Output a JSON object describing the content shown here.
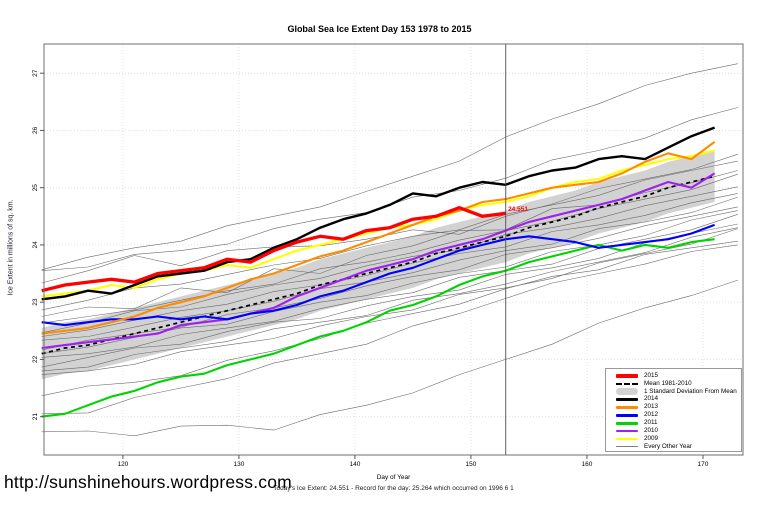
{
  "header": {
    "title": "Global Sea Ice Extent Day 153 1978 to 2015"
  },
  "footer": {
    "url": "http://sunshinehours.wordpress.com",
    "caption": "Today's Ice Extent: 24.551  - Record for the day: 25.264 which occurred on 1996 6 1"
  },
  "annotation": {
    "label": "24.551",
    "day": 153.2,
    "value": 24.62,
    "color": "#ff0000"
  },
  "chart_data": {
    "type": "line",
    "title": "Global Sea Ice Extent Day 153 1978 to 2015",
    "xlabel": "Day of Year",
    "ylabel": "Ice Extent in millions of sq. km.",
    "xlim": [
      113.2,
      173.45
    ],
    "ylim": [
      20.33,
      27.51
    ],
    "x_ticks": [
      120,
      130,
      140,
      150,
      160,
      170
    ],
    "y_ticks": [
      21,
      22,
      23,
      24,
      25,
      26,
      27
    ],
    "grid": true,
    "grid_color": "#dcdcdc",
    "vline_day": 153,
    "vline_color": "#4d4d4d",
    "legend_position": "bottom-right",
    "band": {
      "name": "1 Standard Deviation From Mean",
      "color": "#d2d2d2",
      "halfwidth": 0.45
    },
    "mean": {
      "name": "Mean 1981-2010",
      "color": "#000000",
      "dashed": true,
      "width": 1.7,
      "x_start": 113,
      "x_step": 2,
      "values": [
        22.1,
        22.2,
        22.25,
        22.35,
        22.45,
        22.55,
        22.65,
        22.75,
        22.85,
        22.95,
        23.05,
        23.15,
        23.3,
        23.4,
        23.5,
        23.6,
        23.7,
        23.85,
        23.95,
        24.05,
        24.15,
        24.3,
        24.4,
        24.5,
        24.65,
        24.75,
        24.85,
        25.0,
        25.1,
        25.2
      ]
    },
    "series": [
      {
        "name": "2011",
        "color": "#00d400",
        "width": 2.1,
        "x_start": 113,
        "x_step": 2,
        "values": [
          21.0,
          21.05,
          21.2,
          21.35,
          21.45,
          21.6,
          21.7,
          21.75,
          21.9,
          22.0,
          22.1,
          22.25,
          22.4,
          22.5,
          22.65,
          22.85,
          22.95,
          23.1,
          23.3,
          23.45,
          23.55,
          23.7,
          23.8,
          23.9,
          24.0,
          23.9,
          24.0,
          23.95,
          24.05,
          24.1
        ]
      },
      {
        "name": "2010",
        "color": "#a020f0",
        "width": 2.1,
        "x_start": 113,
        "x_step": 2,
        "values": [
          22.2,
          22.25,
          22.3,
          22.35,
          22.4,
          22.45,
          22.6,
          22.65,
          22.7,
          22.8,
          22.9,
          23.1,
          23.25,
          23.4,
          23.55,
          23.65,
          23.75,
          23.9,
          24.0,
          24.1,
          24.25,
          24.4,
          24.5,
          24.6,
          24.7,
          24.8,
          24.95,
          25.1,
          25.0,
          25.25
        ]
      },
      {
        "name": "2012",
        "color": "#0000ff",
        "width": 2.1,
        "x_start": 113,
        "x_step": 2,
        "values": [
          22.65,
          22.6,
          22.65,
          22.7,
          22.7,
          22.75,
          22.7,
          22.75,
          22.7,
          22.8,
          22.85,
          22.95,
          23.1,
          23.2,
          23.35,
          23.5,
          23.6,
          23.75,
          23.9,
          24.0,
          24.1,
          24.15,
          24.1,
          24.05,
          23.95,
          24.0,
          24.05,
          24.1,
          24.2,
          24.35
        ]
      },
      {
        "name": "2009",
        "color": "#ffff00",
        "width": 2.1,
        "x_start": 113,
        "x_step": 2,
        "values": [
          23.1,
          23.15,
          23.2,
          23.3,
          23.25,
          23.4,
          23.5,
          23.55,
          23.65,
          23.6,
          23.75,
          23.9,
          24.0,
          24.1,
          24.2,
          24.3,
          24.35,
          24.45,
          24.6,
          24.7,
          24.75,
          24.85,
          25.0,
          25.1,
          25.15,
          25.3,
          25.4,
          25.5,
          25.55,
          25.65
        ]
      },
      {
        "name": "2013",
        "color": "#ff8c00",
        "width": 2.1,
        "x_start": 113,
        "x_step": 2,
        "values": [
          22.45,
          22.5,
          22.55,
          22.65,
          22.75,
          22.9,
          23.0,
          23.1,
          23.25,
          23.4,
          23.5,
          23.65,
          23.8,
          23.9,
          24.05,
          24.2,
          24.35,
          24.5,
          24.6,
          24.75,
          24.8,
          24.9,
          25.0,
          25.05,
          25.1,
          25.25,
          25.45,
          25.6,
          25.5,
          25.8
        ]
      },
      {
        "name": "2014",
        "color": "#000000",
        "width": 2.4,
        "x_start": 113,
        "x_step": 2,
        "values": [
          23.05,
          23.1,
          23.2,
          23.15,
          23.3,
          23.45,
          23.5,
          23.55,
          23.7,
          23.75,
          23.95,
          24.1,
          24.3,
          24.45,
          24.55,
          24.7,
          24.9,
          24.85,
          25.0,
          25.1,
          25.05,
          25.2,
          25.3,
          25.35,
          25.5,
          25.55,
          25.5,
          25.7,
          25.9,
          26.05
        ]
      },
      {
        "name": "2015",
        "color": "#ff0000",
        "width": 3.3,
        "x_start": 113,
        "x_step": 2,
        "values": [
          23.2,
          23.3,
          23.35,
          23.4,
          23.35,
          23.5,
          23.55,
          23.6,
          23.75,
          23.7,
          23.9,
          24.05,
          24.15,
          24.1,
          24.25,
          24.3,
          24.45,
          24.5,
          24.65,
          24.5,
          24.55
        ]
      }
    ],
    "background_series": {
      "name": "Every Other Year",
      "color": "#6b6b6b",
      "width": 0.6,
      "x_start": 113,
      "x_step": 4,
      "lines": [
        [
          23.6,
          23.75,
          23.95,
          24.1,
          24.3,
          24.5,
          24.7,
          24.9,
          25.2,
          25.5,
          25.85,
          26.2,
          26.5,
          26.75,
          27.0,
          27.2
        ],
        [
          23.55,
          23.65,
          23.8,
          23.9,
          24.05,
          24.25,
          24.45,
          24.6,
          24.8,
          24.95,
          25.2,
          25.45,
          25.65,
          25.9,
          26.15,
          26.4
        ],
        [
          23.3,
          23.55,
          23.85,
          23.6,
          23.9,
          24.0,
          23.95,
          24.1,
          24.3,
          24.15,
          24.5,
          24.75,
          24.95,
          25.15,
          25.35,
          25.55
        ],
        [
          22.9,
          23.0,
          23.25,
          23.35,
          23.45,
          23.65,
          23.8,
          23.95,
          24.15,
          24.3,
          24.5,
          24.7,
          24.9,
          25.1,
          25.3,
          25.5
        ],
        [
          22.75,
          22.95,
          22.85,
          23.25,
          23.2,
          23.55,
          23.5,
          23.85,
          23.95,
          24.25,
          24.3,
          24.6,
          24.7,
          24.95,
          25.05,
          25.3
        ],
        [
          22.6,
          22.75,
          22.9,
          23.0,
          23.2,
          23.35,
          23.55,
          23.7,
          23.9,
          24.05,
          24.25,
          24.45,
          24.6,
          24.8,
          25.0,
          25.2
        ],
        [
          22.5,
          22.6,
          22.85,
          22.95,
          23.1,
          23.3,
          23.45,
          23.6,
          23.8,
          23.95,
          24.15,
          24.3,
          24.5,
          24.65,
          24.85,
          25.05
        ],
        [
          22.4,
          22.55,
          22.65,
          22.85,
          23.0,
          23.15,
          23.3,
          23.5,
          23.65,
          23.85,
          24.0,
          24.2,
          24.35,
          24.55,
          24.7,
          24.9
        ],
        [
          22.3,
          22.4,
          22.6,
          22.7,
          22.85,
          23.05,
          23.2,
          23.35,
          23.55,
          23.7,
          23.9,
          24.05,
          24.25,
          24.4,
          24.6,
          24.8
        ],
        [
          22.2,
          22.3,
          22.45,
          22.6,
          22.75,
          22.9,
          23.1,
          23.25,
          23.45,
          23.6,
          23.8,
          23.95,
          24.15,
          24.3,
          24.5,
          24.7
        ],
        [
          22.1,
          22.25,
          22.35,
          22.55,
          22.65,
          22.8,
          23.0,
          23.15,
          23.3,
          23.5,
          23.65,
          23.85,
          24.0,
          24.2,
          24.4,
          24.6
        ],
        [
          22.0,
          22.1,
          22.25,
          22.4,
          22.55,
          22.7,
          22.85,
          23.05,
          23.2,
          23.4,
          23.55,
          23.7,
          23.9,
          24.1,
          24.3,
          24.5
        ],
        [
          21.9,
          22.0,
          22.2,
          22.3,
          22.45,
          22.65,
          22.75,
          22.9,
          23.1,
          23.25,
          23.45,
          23.6,
          23.8,
          24.0,
          24.2,
          24.4
        ],
        [
          21.8,
          21.9,
          22.05,
          22.2,
          22.35,
          22.5,
          22.65,
          22.8,
          23.0,
          23.15,
          23.35,
          23.5,
          23.7,
          23.9,
          24.1,
          24.3
        ],
        [
          21.7,
          21.8,
          21.95,
          22.1,
          22.25,
          22.4,
          22.55,
          22.75,
          22.9,
          23.1,
          23.25,
          23.45,
          23.65,
          23.85,
          24.05,
          24.25
        ],
        [
          21.4,
          21.5,
          21.6,
          21.75,
          21.95,
          22.15,
          22.4,
          22.6,
          22.8,
          23.0,
          23.2,
          23.45,
          23.6,
          23.8,
          23.95,
          24.1
        ],
        [
          21.05,
          21.1,
          21.3,
          21.5,
          21.7,
          21.9,
          22.1,
          22.3,
          22.55,
          22.8,
          23.1,
          23.3,
          23.5,
          23.7,
          23.85,
          24.0
        ],
        [
          20.7,
          20.75,
          20.7,
          20.8,
          20.85,
          20.8,
          21.0,
          21.2,
          21.45,
          21.7,
          22.0,
          22.3,
          22.6,
          22.9,
          23.15,
          23.35
        ]
      ]
    }
  },
  "legend": {
    "items": [
      {
        "label": "2015",
        "swatch": "line",
        "color": "#ff0000",
        "thickness": 3.2
      },
      {
        "label": "Mean 1981-2010",
        "swatch": "dash",
        "color": "#000000",
        "thickness": 2.4
      },
      {
        "label": "1 Standard Deviation From Mean",
        "swatch": "blob",
        "color": "#d2d2d2",
        "thickness": 7
      },
      {
        "label": "2014",
        "swatch": "line",
        "color": "#000000",
        "thickness": 2.6
      },
      {
        "label": "2013",
        "swatch": "line",
        "color": "#ff8c00",
        "thickness": 2.6
      },
      {
        "label": "2012",
        "swatch": "line",
        "color": "#0000ff",
        "thickness": 2.6
      },
      {
        "label": "2011",
        "swatch": "line",
        "color": "#00d400",
        "thickness": 2.6
      },
      {
        "label": "2010",
        "swatch": "line",
        "color": "#a020f0",
        "thickness": 2.6
      },
      {
        "label": "2009",
        "swatch": "line",
        "color": "#ffff00",
        "thickness": 2.6
      },
      {
        "label": "Every Other Year",
        "swatch": "line",
        "color": "#7d7d7d",
        "thickness": 1
      }
    ]
  }
}
